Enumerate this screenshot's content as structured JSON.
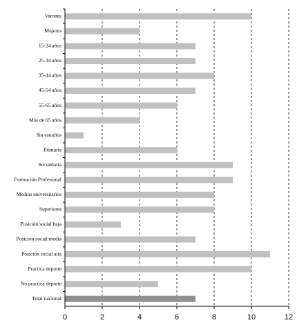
{
  "chart_data": {
    "type": "hbar",
    "categories": [
      "Varones",
      "Mujeres",
      "15-24 años",
      "25-34 años",
      "35-44 años",
      "45-54 años",
      "55-65 años",
      "Más de 65 años",
      "Sin estudios",
      "Primaria",
      "Secundaria",
      "Formación Profesional",
      "Medios universitarios",
      "Superiores",
      "Posición social baja",
      "Posición social media",
      "Posición social alta",
      "Practica deporte",
      "No practica deporte",
      "Total nacional"
    ],
    "values": [
      10,
      4,
      7,
      7,
      8,
      7,
      6,
      4,
      1,
      6,
      9,
      9,
      8,
      8,
      3,
      7,
      11,
      10,
      5,
      7
    ],
    "colors": [
      "#c0c0c0",
      "#c0c0c0",
      "#c0c0c0",
      "#c0c0c0",
      "#c0c0c0",
      "#c0c0c0",
      "#c0c0c0",
      "#c0c0c0",
      "#c0c0c0",
      "#c0c0c0",
      "#c0c0c0",
      "#c0c0c0",
      "#c0c0c0",
      "#c0c0c0",
      "#c0c0c0",
      "#c0c0c0",
      "#c0c0c0",
      "#c0c0c0",
      "#c0c0c0",
      "#909090"
    ],
    "xlim": [
      0,
      12
    ],
    "xticks": [
      0,
      2,
      4,
      6,
      8,
      10,
      12
    ],
    "grid": true
  }
}
